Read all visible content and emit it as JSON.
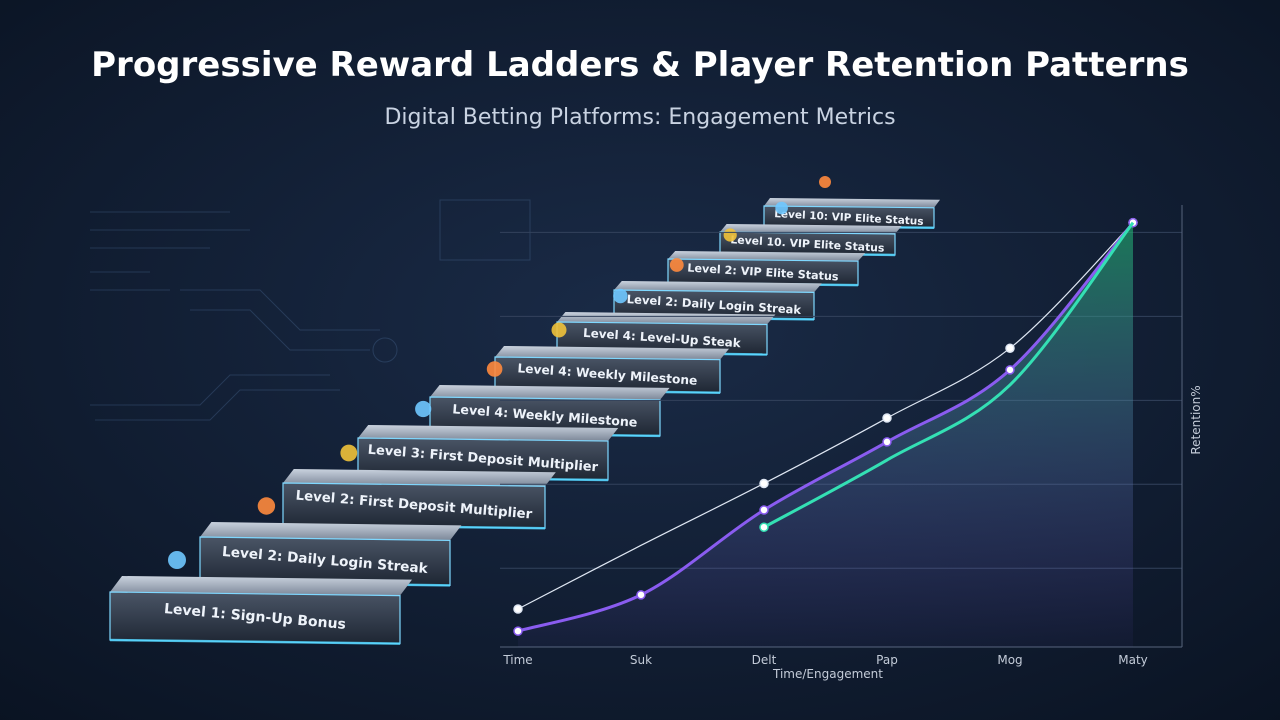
{
  "header": {
    "title": "Progressive Reward Ladders & Player Retention Patterns",
    "subtitle": "Digital Betting Platforms: Engagement Metrics"
  },
  "steps": [
    "Level 1: Sign-Up Bonus",
    "Level 2: Daily Login Streak",
    "Level 2: First Deposit Multiplier",
    "Level 3: First Deposit Multiplier",
    "Level 4: Weekly Milestone",
    "Level 4: Weekly Milestone",
    "Level 4: Level-Up Steak",
    "Level 2: Daily Login Streak",
    "Level 2: VIP Elite Status",
    "Level 10. VIP Elite Status",
    "Level 10: VIP Elite Status"
  ],
  "chart_data": {
    "type": "line",
    "x_label": "Time/Engagement",
    "y_label": "Retention%",
    "categories": [
      "Time",
      "Suk",
      "Delt",
      "Pap",
      "Mog",
      "Maty"
    ],
    "ylim": [
      0,
      100
    ],
    "area_color": "#1fae6e",
    "series": [
      {
        "color": "#dfe7f3",
        "values": [
          8.6,
          23,
          37,
          51.8,
          67.6,
          96
        ]
      },
      {
        "color": "#8a5cf0",
        "values": [
          3.6,
          11.8,
          31,
          46.4,
          62.7,
          96
        ]
      },
      {
        "color": "#34e0b4",
        "values": [
          null,
          null,
          27.1,
          42.3,
          59.3,
          96
        ]
      }
    ]
  }
}
